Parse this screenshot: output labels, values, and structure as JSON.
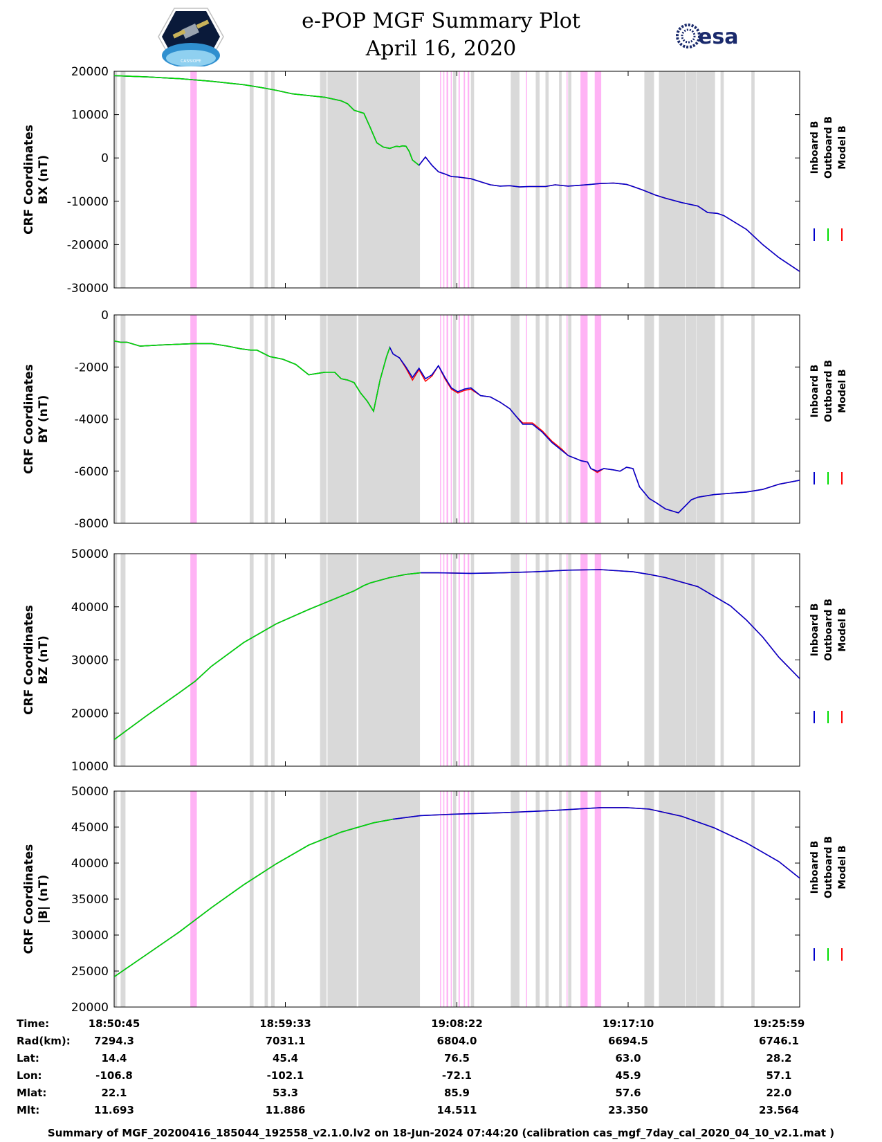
{
  "header": {
    "title": "e-POP MGF Summary Plot",
    "date": "April 16, 2020",
    "left_logo": "cassiope-logo",
    "left_logo_text": "CASSIOPE",
    "right_logo": "esa-logo",
    "right_logo_text": "esa"
  },
  "colors": {
    "inboard": "#0000cc",
    "outboard": "#00dd00",
    "model": "#ff0000",
    "gray_band": "#d9d9d9",
    "pink_band": "#ffb3f5"
  },
  "legend": [
    "Inboard B",
    "Outboard B",
    "Model B"
  ],
  "time_axis": {
    "start_sec": 0,
    "end_sec": 2114,
    "tick_secs": [
      0,
      528,
      1057,
      1585,
      2114
    ],
    "tick_labels": [
      "18:50:45",
      "18:59:33",
      "19:08:22",
      "19:17:10",
      "19:25:59"
    ]
  },
  "gray_bands_sec": [
    [
      0,
      9
    ],
    [
      20,
      35
    ],
    [
      418,
      430
    ],
    [
      464,
      474
    ],
    [
      484,
      495
    ],
    [
      635,
      655
    ],
    [
      658,
      748
    ],
    [
      753,
      943
    ],
    [
      1045,
      1055
    ],
    [
      1100,
      1110
    ],
    [
      1223,
      1250
    ],
    [
      1300,
      1312
    ],
    [
      1330,
      1340
    ],
    [
      1372,
      1380
    ],
    [
      1400,
      1410
    ],
    [
      1635,
      1665
    ],
    [
      1680,
      1760
    ],
    [
      1762,
      1794
    ],
    [
      1795,
      1853
    ],
    [
      1870,
      1880
    ],
    [
      1965,
      1975
    ]
  ],
  "pink_bands_sec": [
    [
      235,
      255
    ],
    [
      1005,
      1008
    ],
    [
      1015,
      1018
    ],
    [
      1025,
      1030
    ],
    [
      1038,
      1041
    ],
    [
      1062,
      1066
    ],
    [
      1078,
      1082
    ],
    [
      1090,
      1095
    ],
    [
      1270,
      1273
    ],
    [
      1395,
      1398
    ],
    [
      1438,
      1460
    ],
    [
      1482,
      1502
    ]
  ],
  "chart_data": [
    {
      "type": "line",
      "ylabel": "CRF Coordinates BX (nT)",
      "ylabel_lines": [
        "CRF Coordinates",
        "BX (nT)"
      ],
      "ylim": [
        -30000,
        20000
      ],
      "yticks": [
        -30000,
        -20000,
        -10000,
        0,
        10000,
        20000
      ],
      "split_sec": 945,
      "x": [
        0,
        100,
        200,
        300,
        400,
        450,
        500,
        550,
        600,
        650,
        700,
        720,
        740,
        770,
        790,
        810,
        830,
        850,
        870,
        880,
        890,
        900,
        910,
        920,
        940,
        960,
        980,
        1000,
        1020,
        1040,
        1060,
        1080,
        1100,
        1130,
        1160,
        1190,
        1220,
        1250,
        1280,
        1300,
        1330,
        1360,
        1400,
        1440,
        1470,
        1500,
        1540,
        1580,
        1600,
        1630,
        1650,
        1670,
        1700,
        1750,
        1800,
        1830,
        1860,
        1880,
        1950,
        2000,
        2050,
        2114
      ],
      "series": [
        {
          "name": "Inboard B",
          "values": [
            19000,
            18700,
            18300,
            17700,
            16900,
            16300,
            15600,
            14800,
            14400,
            14000,
            13200,
            12500,
            11000,
            10300,
            7000,
            3500,
            2500,
            2200,
            2700,
            2600,
            2800,
            2700,
            1500,
            -500,
            -1700,
            200,
            -1700,
            -3200,
            -3700,
            -4300,
            -4400,
            -4600,
            -4800,
            -5500,
            -6200,
            -6500,
            -6400,
            -6700,
            -6600,
            -6600,
            -6600,
            -6200,
            -6500,
            -6300,
            -6100,
            -5900,
            -5800,
            -6100,
            -6600,
            -7400,
            -8000,
            -8600,
            -9300,
            -10300,
            -11100,
            -12600,
            -12800,
            -13300,
            -16500,
            -20000,
            -23000,
            -26200
          ]
        },
        {
          "name": "Outboard B",
          "values": [
            19000,
            18700,
            18300,
            17700,
            16900,
            16300,
            15600,
            14800,
            14400,
            14000,
            13200,
            12500,
            11000,
            10300,
            7000,
            3500,
            2500,
            2200,
            2700,
            2600,
            2800,
            2700,
            1500,
            -500,
            -1700,
            200,
            -1700,
            -3200,
            -3700,
            -4300,
            -4400,
            -4600,
            -4800,
            -5500,
            -6200,
            -6500,
            -6400,
            -6700,
            -6600,
            -6600,
            -6600,
            -6200,
            -6500,
            -6300,
            -6100,
            -5900,
            -5800,
            -6100,
            -6600,
            -7400,
            -8000,
            -8600,
            -9300,
            -10300,
            -11100,
            -12600,
            -12800,
            -13300,
            -16500,
            -20000,
            -23000,
            -26200
          ]
        },
        {
          "name": "Model B",
          "values": [
            19000,
            18700,
            18300,
            17700,
            16900,
            16300,
            15600,
            14800,
            14400,
            14000,
            13200,
            12500,
            11000,
            10300,
            7000,
            3500,
            2500,
            2200,
            2700,
            2600,
            2800,
            2700,
            1500,
            -500,
            -1700,
            200,
            -1700,
            -3200,
            -3700,
            -4300,
            -4400,
            -4600,
            -4800,
            -5500,
            -6200,
            -6500,
            -6400,
            -6700,
            -6600,
            -6600,
            -6600,
            -6200,
            -6500,
            -6300,
            -6100,
            -5900,
            -5800,
            -6100,
            -6600,
            -7400,
            -8000,
            -8600,
            -9300,
            -10300,
            -11100,
            -12600,
            -12800,
            -13300,
            -16500,
            -20000,
            -23000,
            -26200
          ]
        }
      ]
    },
    {
      "type": "line",
      "ylabel": "CRF Coordinates BY (nT)",
      "ylabel_lines": [
        "CRF Coordinates",
        "BY (nT)"
      ],
      "ylim": [
        -8000,
        0
      ],
      "yticks": [
        -8000,
        -6000,
        -4000,
        -2000,
        0
      ],
      "split_sec": 850,
      "x": [
        0,
        20,
        40,
        80,
        150,
        250,
        300,
        350,
        390,
        420,
        440,
        480,
        520,
        560,
        600,
        650,
        680,
        700,
        720,
        740,
        760,
        780,
        800,
        820,
        840,
        850,
        860,
        880,
        900,
        920,
        940,
        960,
        980,
        1000,
        1020,
        1040,
        1060,
        1080,
        1100,
        1130,
        1160,
        1190,
        1220,
        1240,
        1260,
        1290,
        1320,
        1350,
        1380,
        1400,
        1420,
        1440,
        1460,
        1470,
        1490,
        1510,
        1540,
        1560,
        1580,
        1600,
        1620,
        1650,
        1670,
        1700,
        1740,
        1760,
        1780,
        1800,
        1850,
        1900,
        1950,
        2000,
        2050,
        2114
      ],
      "series": [
        {
          "name": "Inboard B",
          "values": [
            -1000,
            -1050,
            -1050,
            -1200,
            -1150,
            -1100,
            -1100,
            -1200,
            -1300,
            -1350,
            -1350,
            -1600,
            -1700,
            -1900,
            -2300,
            -2200,
            -2200,
            -2450,
            -2500,
            -2600,
            -3000,
            -3300,
            -3700,
            -2500,
            -1600,
            -1250,
            -1500,
            -1650,
            -2000,
            -2400,
            -2050,
            -2450,
            -2300,
            -1950,
            -2400,
            -2800,
            -2950,
            -2850,
            -2800,
            -3100,
            -3150,
            -3350,
            -3600,
            -3900,
            -4200,
            -4200,
            -4500,
            -4900,
            -5200,
            -5400,
            -5500,
            -5600,
            -5650,
            -5900,
            -6000,
            -5900,
            -5950,
            -6000,
            -5850,
            -5900,
            -6600,
            -7050,
            -7200,
            -7450,
            -7600,
            -7350,
            -7100,
            -7000,
            -6900,
            -6850,
            -6800,
            -6700,
            -6500,
            -6350
          ]
        },
        {
          "name": "Outboard B",
          "values": [
            -1000,
            -1050,
            -1050,
            -1200,
            -1150,
            -1100,
            -1100,
            -1200,
            -1300,
            -1350,
            -1350,
            -1600,
            -1700,
            -1900,
            -2300,
            -2200,
            -2200,
            -2450,
            -2500,
            -2600,
            -3000,
            -3300,
            -3700,
            -2500,
            -1600,
            -1250,
            -1500,
            -1650,
            -2000,
            -2400,
            -2050,
            -2450,
            -2300,
            -1950,
            -2400,
            -2800,
            -2950,
            -2850,
            -2800,
            -3100,
            -3150,
            -3350,
            -3600,
            -3900,
            -4200,
            -4200,
            -4500,
            -4900,
            -5200,
            -5400,
            -5500,
            -5600,
            -5650,
            -5900,
            -6000,
            -5900,
            -5950,
            -6000,
            -5850,
            -5900,
            -6600,
            -7050,
            -7200,
            -7450,
            -7600,
            -7350,
            -7100,
            -7000,
            -6900,
            -6850,
            -6800,
            -6700,
            -6500,
            -6350
          ]
        },
        {
          "name": "Model B",
          "values": [
            -1000,
            -1050,
            -1050,
            -1200,
            -1150,
            -1100,
            -1100,
            -1200,
            -1300,
            -1350,
            -1350,
            -1600,
            -1700,
            -1900,
            -2300,
            -2200,
            -2200,
            -2450,
            -2500,
            -2600,
            -3000,
            -3300,
            -3700,
            -2500,
            -1600,
            -1250,
            -1500,
            -1650,
            -2050,
            -2500,
            -2100,
            -2550,
            -2350,
            -1950,
            -2450,
            -2850,
            -3000,
            -2900,
            -2850,
            -3100,
            -3150,
            -3350,
            -3600,
            -3900,
            -4150,
            -4150,
            -4450,
            -4850,
            -5150,
            -5400,
            -5500,
            -5600,
            -5650,
            -5900,
            -6050,
            -5900,
            -5950,
            -6000,
            -5850,
            -5900,
            -6600,
            -7050,
            -7200,
            -7450,
            -7600,
            -7350,
            -7100,
            -7000,
            -6900,
            -6850,
            -6800,
            -6700,
            -6500,
            -6350
          ]
        }
      ]
    },
    {
      "type": "line",
      "ylabel": "CRF Coordinates BZ (nT)",
      "ylabel_lines": [
        "CRF Coordinates",
        "BZ (nT)"
      ],
      "ylim": [
        10000,
        50000
      ],
      "yticks": [
        10000,
        20000,
        30000,
        40000,
        50000
      ],
      "split_sec": 945,
      "x": [
        0,
        100,
        200,
        250,
        300,
        400,
        500,
        600,
        700,
        740,
        770,
        790,
        850,
        900,
        945,
        1000,
        1100,
        1200,
        1300,
        1400,
        1500,
        1600,
        1650,
        1700,
        1800,
        1850,
        1900,
        1950,
        2000,
        2050,
        2114
      ],
      "series": [
        {
          "name": "Inboard B",
          "values": [
            15000,
            19500,
            23800,
            26000,
            28800,
            33300,
            36800,
            39500,
            42000,
            43000,
            44000,
            44500,
            45500,
            46100,
            46400,
            46400,
            46300,
            46400,
            46600,
            46900,
            47000,
            46600,
            46100,
            45500,
            43800,
            42000,
            40200,
            37500,
            34300,
            30500,
            26500
          ]
        },
        {
          "name": "Outboard B",
          "values": [
            15000,
            19500,
            23800,
            26000,
            28800,
            33300,
            36800,
            39500,
            42000,
            43000,
            44000,
            44500,
            45500,
            46100,
            46400,
            46400,
            46300,
            46400,
            46600,
            46900,
            47000,
            46600,
            46100,
            45500,
            43800,
            42000,
            40200,
            37500,
            34300,
            30500,
            26500
          ]
        },
        {
          "name": "Model B",
          "values": [
            15000,
            19500,
            23800,
            26000,
            28800,
            33300,
            36800,
            39500,
            42000,
            43000,
            44000,
            44500,
            45500,
            46100,
            46400,
            46400,
            46300,
            46400,
            46600,
            46900,
            47000,
            46600,
            46100,
            45500,
            43800,
            42000,
            40200,
            37500,
            34300,
            30500,
            26500
          ]
        }
      ]
    },
    {
      "type": "line",
      "ylabel": "CRF Coordinates |B| (nT)",
      "ylabel_lines": [
        "CRF Coordinates",
        "|B| (nT)"
      ],
      "ylim": [
        20000,
        50000
      ],
      "yticks": [
        20000,
        25000,
        30000,
        35000,
        40000,
        45000,
        50000
      ],
      "split_sec": 860,
      "x": [
        0,
        100,
        200,
        300,
        400,
        500,
        600,
        700,
        800,
        860,
        945,
        1050,
        1200,
        1350,
        1500,
        1580,
        1650,
        1750,
        1850,
        1950,
        2050,
        2114
      ],
      "series": [
        {
          "name": "Inboard B",
          "values": [
            24200,
            27300,
            30400,
            33800,
            37000,
            39900,
            42500,
            44300,
            45600,
            46100,
            46600,
            46800,
            47000,
            47300,
            47700,
            47700,
            47500,
            46500,
            44900,
            42800,
            40200,
            37900
          ]
        },
        {
          "name": "Outboard B",
          "values": [
            24200,
            27300,
            30400,
            33800,
            37000,
            39900,
            42500,
            44300,
            45600,
            46100,
            46600,
            46800,
            47000,
            47300,
            47700,
            47700,
            47500,
            46500,
            44900,
            42800,
            40200,
            37900
          ]
        },
        {
          "name": "Model B",
          "values": [
            24200,
            27300,
            30400,
            33800,
            37000,
            39900,
            42500,
            44300,
            45600,
            46100,
            46600,
            46800,
            47000,
            47300,
            47700,
            47700,
            47500,
            46500,
            44900,
            42800,
            40200,
            37900
          ]
        }
      ]
    }
  ],
  "ephemeris": {
    "labels": [
      "Time:",
      "Rad(km):",
      "Lat:",
      "Lon:",
      "Mlat:",
      "Mlt:"
    ],
    "columns": [
      [
        "18:50:45",
        "7294.3",
        "14.4",
        "-106.8",
        "22.1",
        "11.693"
      ],
      [
        "18:59:33",
        "7031.1",
        "45.4",
        "-102.1",
        "53.3",
        "11.886"
      ],
      [
        "19:08:22",
        "6804.0",
        "76.5",
        "-72.1",
        "85.9",
        "14.511"
      ],
      [
        "19:17:10",
        "6694.5",
        "63.0",
        "45.9",
        "57.6",
        "23.350"
      ],
      [
        "19:25:59",
        "6746.1",
        "28.2",
        "57.1",
        "22.0",
        "23.564"
      ]
    ]
  },
  "footer": "Summary of MGF_20200416_185044_192558_v2.1.0.lv2 on 18-Jun-2024 07:44:20 (calibration cas_mgf_7day_cal_2020_04_10_v2.1.mat )"
}
